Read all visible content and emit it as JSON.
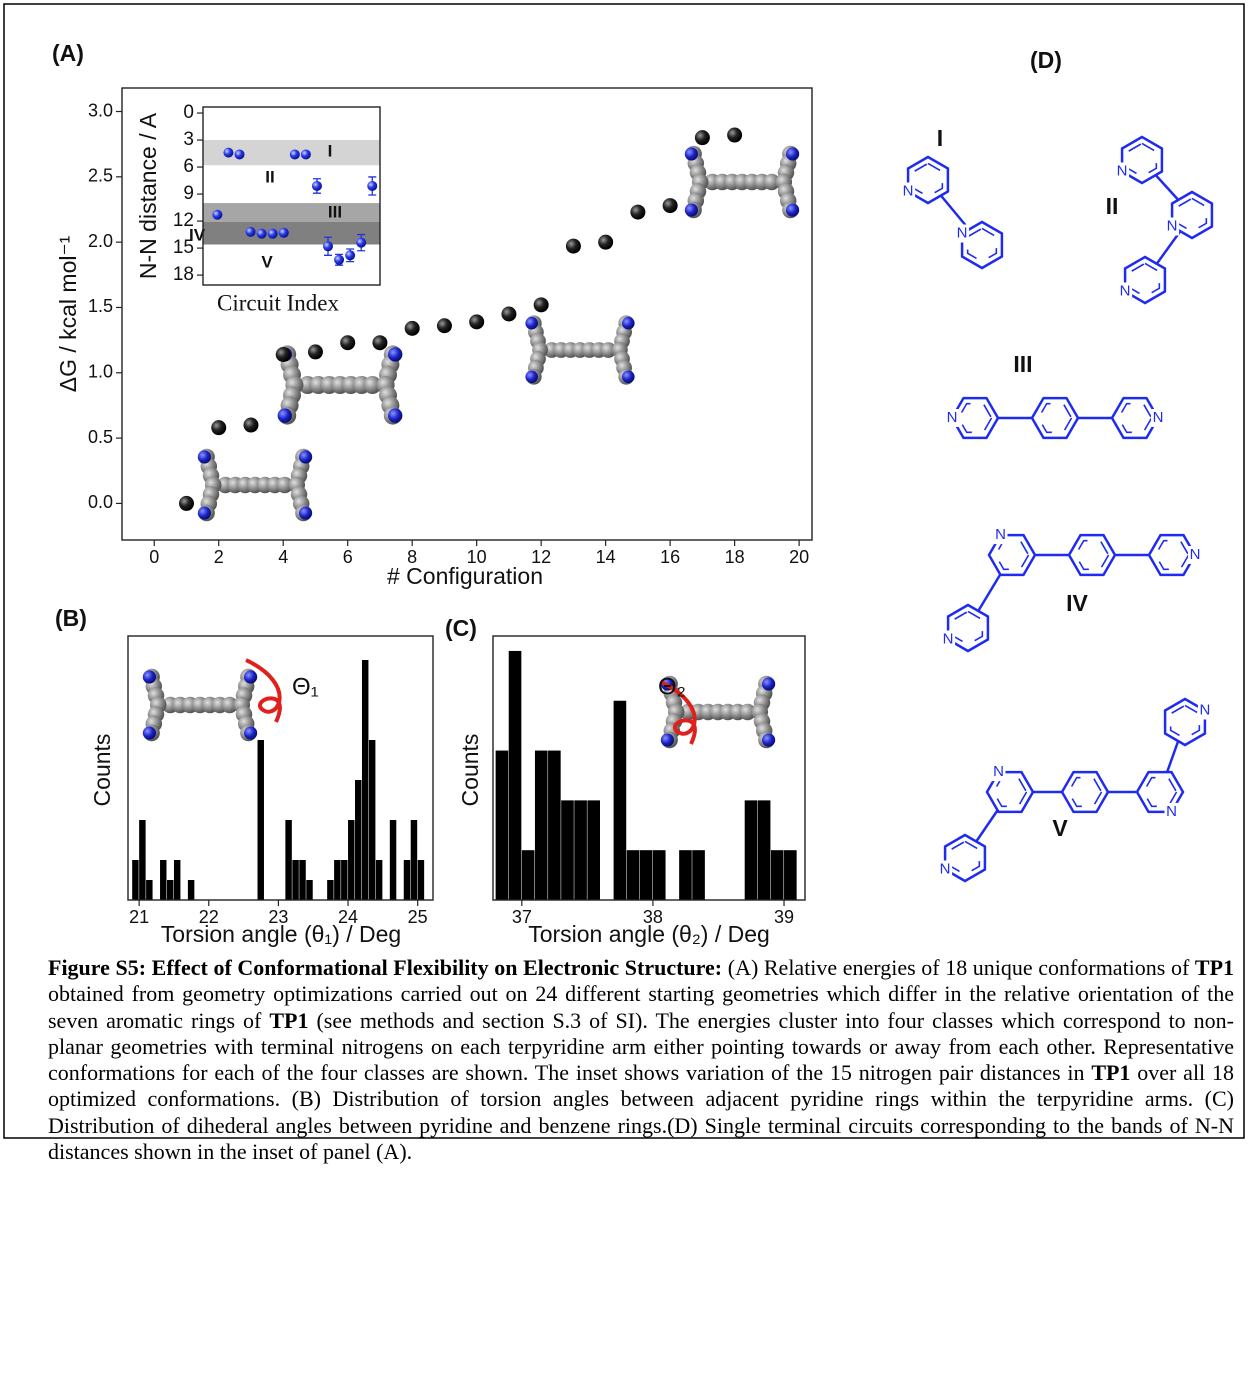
{
  "panel_labels": [
    "(A)",
    "(B)",
    "(C)",
    "(D)"
  ],
  "chart_data": [
    {
      "type": "scatter",
      "x_label": "# Configuration",
      "y_label": "ΔG / kcal mol⁻¹",
      "color": "#111111",
      "x": [
        1,
        2,
        3,
        4,
        5,
        6,
        7,
        8,
        9,
        10,
        11,
        12,
        13,
        14,
        15,
        16,
        17,
        18
      ],
      "y": [
        0,
        0.58,
        0.6,
        1.14,
        1.16,
        1.23,
        1.23,
        1.34,
        1.36,
        1.39,
        1.45,
        1.52,
        1.97,
        2.0,
        2.23,
        2.28,
        2.8,
        2.82
      ],
      "xlim": [
        -1,
        20.4
      ],
      "ylim": [
        -0.28,
        3.18
      ],
      "xticks": [
        0,
        2,
        4,
        6,
        8,
        10,
        12,
        14,
        16,
        18,
        20
      ],
      "yticks": [
        {
          "value": 0,
          "label": "0.0"
        },
        0.5,
        {
          "value": 1,
          "label": "1.0"
        },
        1.5,
        {
          "value": 2,
          "label": "2.0"
        },
        2.5,
        {
          "value": 3,
          "label": "3.0"
        }
      ]
    },
    {
      "type": "scatter",
      "x_label": "Circuit Index",
      "y_label": "N-N distance / A",
      "color": "#2233dd",
      "x": [
        1,
        2,
        3,
        4,
        5,
        6,
        7,
        8,
        9,
        10,
        11,
        12,
        13,
        14,
        15
      ],
      "y": [
        11.3,
        4.4,
        4.6,
        13.2,
        13.4,
        13.4,
        13.3,
        4.6,
        4.6,
        8.1,
        14.8,
        16.3,
        15.8,
        14.4,
        8.1
      ],
      "errors": [
        null,
        null,
        null,
        null,
        null,
        null,
        null,
        null,
        null,
        0.8,
        1.0,
        0.6,
        0.7,
        0.9,
        1.0
      ],
      "xlim": [
        -0.3,
        15.7
      ],
      "ylim": [
        19.1,
        -0.67
      ],
      "yticks": [
        0,
        3,
        6,
        9,
        12,
        15,
        18
      ],
      "bands": [
        {
          "range": [
            3,
            5.8
          ],
          "color": "#d4d4d4"
        },
        {
          "range": [
            10,
            12.1
          ],
          "color": "#a6a6a6"
        },
        {
          "range": [
            12.1,
            14.6
          ],
          "color": "#808080"
        }
      ],
      "band_labels": [
        "I",
        "II",
        "III",
        "IV",
        "V"
      ]
    },
    {
      "type": "histogram",
      "x_label": "Torsion angle (θ₁) / Deg",
      "y_label": "Counts",
      "annotation": "Θ₁",
      "color": "#000000",
      "bins": [
        20.9,
        21,
        21.1,
        21.2,
        21.3,
        21.4,
        21.5,
        21.6,
        21.7,
        21.8,
        21.9,
        22,
        22.1,
        22.2,
        22.3,
        22.4,
        22.5,
        22.6,
        22.7,
        22.8,
        22.9,
        23,
        23.1,
        23.2,
        23.3,
        23.4,
        23.5,
        23.6,
        23.7,
        23.8,
        23.9,
        24,
        24.1,
        24.2,
        24.3,
        24.4,
        24.5,
        24.6,
        24.7,
        24.8,
        24.9,
        25,
        25.1,
        25.2
      ],
      "values": [
        2,
        4,
        1,
        0,
        2,
        1,
        2,
        0,
        1,
        0,
        0,
        0,
        0,
        0,
        0,
        0,
        0,
        0,
        8,
        0,
        0,
        0,
        4,
        2,
        2,
        1,
        0,
        0,
        1,
        2,
        2,
        4,
        6,
        12,
        8,
        2,
        0,
        4,
        0,
        2,
        4,
        2,
        0
      ],
      "xlim": [
        20.84,
        25.22
      ],
      "ylim": [
        0,
        13.2
      ],
      "xticks": [
        21,
        22,
        23,
        24,
        25
      ]
    },
    {
      "type": "histogram",
      "x_label": "Torsion angle (θ₂) / Deg",
      "y_label": "Counts",
      "annotation": "Θ₂",
      "color": "#000000",
      "bins": [
        36.8,
        36.9,
        37,
        37.1,
        37.2,
        37.3,
        37.4,
        37.5,
        37.6,
        37.7,
        37.8,
        37.9,
        38,
        38.1,
        38.2,
        38.3,
        38.4,
        38.5,
        38.6,
        38.7,
        38.8,
        38.9,
        39,
        39.1
      ],
      "values": [
        3,
        5,
        1,
        3,
        3,
        2,
        2,
        2,
        0,
        4,
        1,
        1,
        1,
        0,
        1,
        1,
        0,
        0,
        0,
        2,
        2,
        1,
        1
      ],
      "xlim": [
        36.78,
        39.16
      ],
      "ylim": [
        0,
        5.3
      ],
      "xticks": [
        37,
        38,
        39
      ]
    }
  ],
  "structures": {
    "labels": [
      "I",
      "II",
      "III",
      "IV",
      "V"
    ],
    "atom": "N"
  },
  "caption": {
    "runs": [
      {
        "text": "Figure S5: Effect of Conformational Flexibility on Electronic Structure:",
        "bold": true
      },
      {
        "text": " (A) Relative energies of 18 unique conformations of ",
        "bold": false
      },
      {
        "text": "TP1",
        "bold": true
      },
      {
        "text": " obtained from geometry optimizations carried out on 24 different starting geometries which differ in the relative orientation of the seven aromatic rings of ",
        "bold": false
      },
      {
        "text": "TP1",
        "bold": true
      },
      {
        "text": " (see methods and section S.3 of SI). The energies cluster into four classes which correspond to non-planar geometries with terminal nitrogens on each terpyridine arm either pointing towards or away from each other. Representative conformations for each of the four classes are shown. The inset shows variation of the 15 nitrogen pair distances in ",
        "bold": false
      },
      {
        "text": "TP1",
        "bold": true
      },
      {
        "text": " over all 18 optimized conformations. (B) Distribution of torsion angles between adjacent pyridine rings within the terpyridine arms. (C) Distribution of dihederal angles between pyridine and benzene rings.(D) Single terminal circuits corresponding to the bands of N-N distances shown in the inset of  panel (A).",
        "bold": false
      }
    ]
  }
}
